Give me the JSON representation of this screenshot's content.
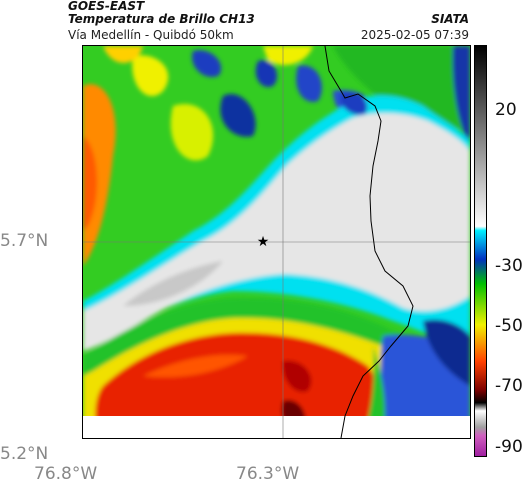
{
  "header": {
    "satellite": "GOES-EAST",
    "product": "Temperatura de Brillo CH13",
    "location": "Vía Medellín - Quibdó 50km",
    "agency": "SIATA",
    "timestamp": "2025-02-05 07:39"
  },
  "map": {
    "lat_ticks": [
      "5.7°N",
      "5.2°N"
    ],
    "lon_ticks": [
      "76.8°W",
      "76.3°W"
    ],
    "marker": "star"
  },
  "colorbar": {
    "ticks": [
      "20",
      "-30",
      "-50",
      "-70",
      "-90"
    ]
  },
  "colors": {
    "cloud_free": "#e4e4e4",
    "cyan": "#00e5f5",
    "blue": "#0033b0",
    "green": "#2ad02a",
    "yellow": "#f0f000",
    "red": "#e82000",
    "dark_red": "#7a0000"
  }
}
